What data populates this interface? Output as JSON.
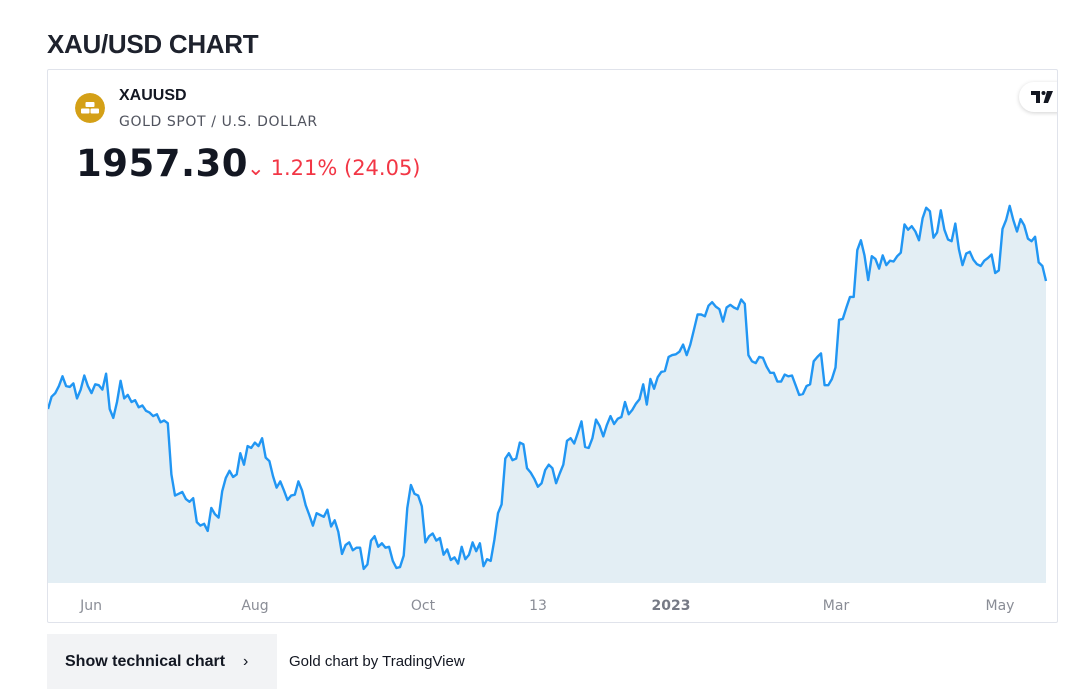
{
  "page": {
    "title": "XAU/USD CHART"
  },
  "symbol": {
    "ticker": "XAUUSD",
    "description": "GOLD SPOT / U.S. DOLLAR",
    "price": "1957.30",
    "change_arrow": "⌄",
    "change": "1.21% (24.05)",
    "colors": {
      "line": "#2196f3",
      "fill": "#e3eef4",
      "negative": "#f23645",
      "logo": "#d4a017"
    },
    "logo_icon": "gold-bars-icon",
    "brand_icon": "tradingview-logo-icon"
  },
  "chart_data": {
    "type": "area",
    "x_axis_labels": [
      "Jun",
      "Aug",
      "Oct",
      "13",
      "2023",
      "Mar",
      "May"
    ],
    "x_axis_bold": [
      "2023"
    ],
    "ylim": [
      1615,
      2060
    ],
    "grid": false,
    "values": [
      1812,
      1826,
      1830,
      1838,
      1849,
      1838,
      1837,
      1841,
      1824,
      1834,
      1850,
      1838,
      1830,
      1840,
      1839,
      1834,
      1852,
      1812,
      1802,
      1820,
      1844,
      1824,
      1828,
      1820,
      1822,
      1814,
      1816,
      1810,
      1808,
      1804,
      1806,
      1797,
      1799,
      1796,
      1738,
      1714,
      1716,
      1718,
      1710,
      1707,
      1711,
      1684,
      1680,
      1682,
      1674,
      1700,
      1693,
      1689,
      1719,
      1734,
      1742,
      1735,
      1738,
      1762,
      1749,
      1770,
      1768,
      1774,
      1770,
      1779,
      1757,
      1753,
      1736,
      1723,
      1730,
      1720,
      1709,
      1714,
      1715,
      1730,
      1720,
      1703,
      1692,
      1680,
      1694,
      1692,
      1690,
      1698,
      1679,
      1686,
      1673,
      1648,
      1658,
      1661,
      1652,
      1655,
      1655,
      1631,
      1636,
      1663,
      1668,
      1656,
      1660,
      1655,
      1656,
      1640,
      1632,
      1633,
      1646,
      1700,
      1726,
      1716,
      1714,
      1702,
      1661,
      1668,
      1671,
      1663,
      1666,
      1647,
      1653,
      1641,
      1644,
      1637,
      1656,
      1642,
      1647,
      1661,
      1651,
      1660,
      1634,
      1642,
      1640,
      1664,
      1694,
      1704,
      1756,
      1762,
      1754,
      1756,
      1774,
      1772,
      1745,
      1740,
      1733,
      1724,
      1728,
      1743,
      1749,
      1745,
      1728,
      1739,
      1749,
      1776,
      1779,
      1773,
      1785,
      1798,
      1769,
      1768,
      1779,
      1800,
      1793,
      1781,
      1794,
      1804,
      1795,
      1801,
      1803,
      1820,
      1806,
      1811,
      1818,
      1823,
      1840,
      1817,
      1846,
      1835,
      1848,
      1854,
      1855,
      1871,
      1873,
      1874,
      1877,
      1885,
      1873,
      1885,
      1902,
      1919,
      1919,
      1917,
      1929,
      1933,
      1928,
      1925,
      1911,
      1927,
      1930,
      1927,
      1925,
      1936,
      1931,
      1873,
      1866,
      1864,
      1871,
      1870,
      1860,
      1853,
      1853,
      1843,
      1843,
      1851,
      1849,
      1850,
      1839,
      1828,
      1829,
      1838,
      1840,
      1866,
      1871,
      1875,
      1839,
      1839,
      1846,
      1859,
      1913,
      1914,
      1927,
      1939,
      1939,
      1992,
      2003,
      1986,
      1958,
      1985,
      1982,
      1971,
      1986,
      1975,
      1980,
      1979,
      1985,
      1989,
      2021,
      2015,
      2019,
      2013,
      2003,
      2028,
      2040,
      2036,
      2006,
      2012,
      2037,
      2015,
      2004,
      2002,
      2022,
      1993,
      1975,
      1988,
      1990,
      1981,
      1976,
      1974,
      1980,
      1983,
      1987,
      1966,
      1969,
      2016,
      2026,
      2042,
      2026,
      2013,
      2027,
      2020,
      2005,
      2002,
      2007,
      1978,
      1974,
      1957
    ]
  },
  "footer": {
    "button_label": "Show technical chart",
    "button_chevron": "›",
    "attribution": "Gold chart by TradingView"
  }
}
